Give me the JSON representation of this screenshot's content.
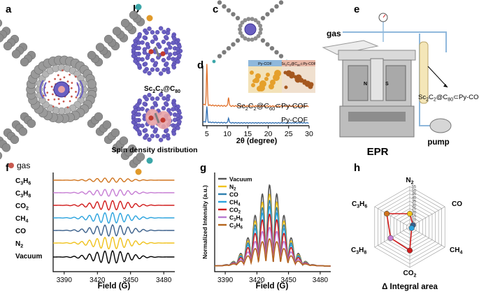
{
  "figure": {
    "panel_labels": [
      "a",
      "b",
      "c",
      "d",
      "e",
      "f",
      "g",
      "h"
    ],
    "a": {
      "gas_label": "gas",
      "colors": {
        "atom_gray": "#8f8f8f",
        "atom_teal": "#3aa6a8",
        "atom_orange": "#e19a2a",
        "gas_dot": "#c8594f"
      }
    },
    "b": {
      "molecule_label": "Sc2C2@C80",
      "spin_label": "Spin density distribution",
      "colors": {
        "cage": "#6a5fc2",
        "metal": "#c23a2e",
        "spin": "#e8a3a6"
      }
    },
    "d": {
      "inset_label_left": "Py-COF",
      "inset_label_right": "Sc2C2@C80⊂Py-COF",
      "xlabel": "2θ (degree)",
      "series_labels": [
        "Sc2C2@C80⊂Py-COF",
        "Py-COF"
      ],
      "colors": {
        "top": "#e0712b",
        "bottom": "#2f6fb3",
        "inset_left": "#8fb8dc",
        "inset_right": "#e8b7a6",
        "powder_yellow": "#e5a02b",
        "powder_brown": "#a5581f"
      }
    },
    "e": {
      "gas_label": "gas",
      "epr_label": "EPR",
      "pump_label": "pump",
      "sample_label": "Sc2C2@C80⊂Py-COF",
      "pole_n": "N",
      "pole_s": "S"
    },
    "f": {
      "xlabel": "Field (G)",
      "legend": [
        "C3H6",
        "C3H8",
        "CO2",
        "CH4",
        "CO",
        "N2",
        "Vacuum"
      ],
      "colors": [
        "#d0751f",
        "#c67dd4",
        "#d11b1b",
        "#2ba3de",
        "#3a5f8a",
        "#f0c21c",
        "#000000"
      ]
    },
    "g": {
      "ylabel": "Normalized Intensity (a.u.)",
      "xlabel": "Field (G)",
      "legend": [
        "Vacuum",
        "N2",
        "CO",
        "CH4",
        "CO2",
        "C3H8",
        "C3H6"
      ],
      "colors": [
        "#555555",
        "#f0c21c",
        "#2e7fae",
        "#2ba3de",
        "#d11b1b",
        "#b77ad0",
        "#b5651d"
      ]
    },
    "h": {
      "axis_labels": [
        "N2",
        "CO",
        "CH4",
        "CO2",
        "C3H8",
        "C3H6"
      ],
      "title": "Δ Integral area",
      "color": "#d11b1b"
    }
  },
  "chart_data": [
    {
      "type": "line",
      "panel": "d",
      "title": "",
      "xlabel": "2θ (degree)",
      "ylabel": "",
      "xlim": [
        4,
        30
      ],
      "xticks": [
        5,
        10,
        15,
        20,
        25,
        30
      ],
      "series": [
        {
          "name": "Sc2C2@C80⊂Py-COF",
          "peaks": [
            {
              "x": 5.0,
              "h": 1.0
            },
            {
              "x": 10.3,
              "h": 0.22
            }
          ],
          "offset": 0.42
        },
        {
          "name": "Py-COF",
          "peaks": [
            {
              "x": 5.0,
              "h": 0.55
            },
            {
              "x": 10.3,
              "h": 0.18
            }
          ],
          "offset": 0.0
        }
      ]
    },
    {
      "type": "line",
      "panel": "f",
      "xlabel": "Field (G)",
      "xlim": [
        3380,
        3490
      ],
      "xticks": [
        3390,
        3420,
        3450,
        3480
      ],
      "center": 3432,
      "series": [
        {
          "name": "C3H6",
          "amplitude": 0.35
        },
        {
          "name": "C3H8",
          "amplitude": 0.55
        },
        {
          "name": "CO2",
          "amplitude": 0.75
        },
        {
          "name": "CH4",
          "amplitude": 0.85
        },
        {
          "name": "CO",
          "amplitude": 0.9
        },
        {
          "name": "N2",
          "amplitude": 0.95
        },
        {
          "name": "Vacuum",
          "amplitude": 1.0
        }
      ]
    },
    {
      "type": "line",
      "panel": "g",
      "xlabel": "Field (G)",
      "ylabel": "Normalized Intensity (a.u.)",
      "xlim": [
        3380,
        3490
      ],
      "xticks": [
        3390,
        3420,
        3450,
        3480
      ],
      "center": 3432,
      "series": [
        {
          "name": "Vacuum",
          "scale": 1.0
        },
        {
          "name": "N2",
          "scale": 0.88
        },
        {
          "name": "CO",
          "scale": 0.8
        },
        {
          "name": "CH4",
          "scale": 0.72
        },
        {
          "name": "CO2",
          "scale": 0.62
        },
        {
          "name": "C3H8",
          "scale": 0.45
        },
        {
          "name": "C3H6",
          "scale": 0.3
        }
      ]
    },
    {
      "type": "radar",
      "panel": "h",
      "title": "Δ Integral area",
      "rmax": 55,
      "rings": [
        5,
        10,
        15,
        20,
        25,
        30,
        35,
        40,
        45,
        50,
        55
      ],
      "ring_labels": [
        "1",
        "5",
        "10",
        "15",
        "20",
        "25",
        "30",
        "35",
        "40",
        "45",
        "50",
        "55"
      ],
      "categories": [
        "N2",
        "CO",
        "CH4",
        "CO2",
        "C3H8",
        "C3H6"
      ],
      "values": [
        18,
        5,
        3,
        32,
        30,
        36
      ],
      "point_colors": [
        "#f0c21c",
        "#3a5f8a",
        "#2ba3de",
        "#d11b1b",
        "#c67dd4",
        "#d0751f"
      ]
    }
  ]
}
